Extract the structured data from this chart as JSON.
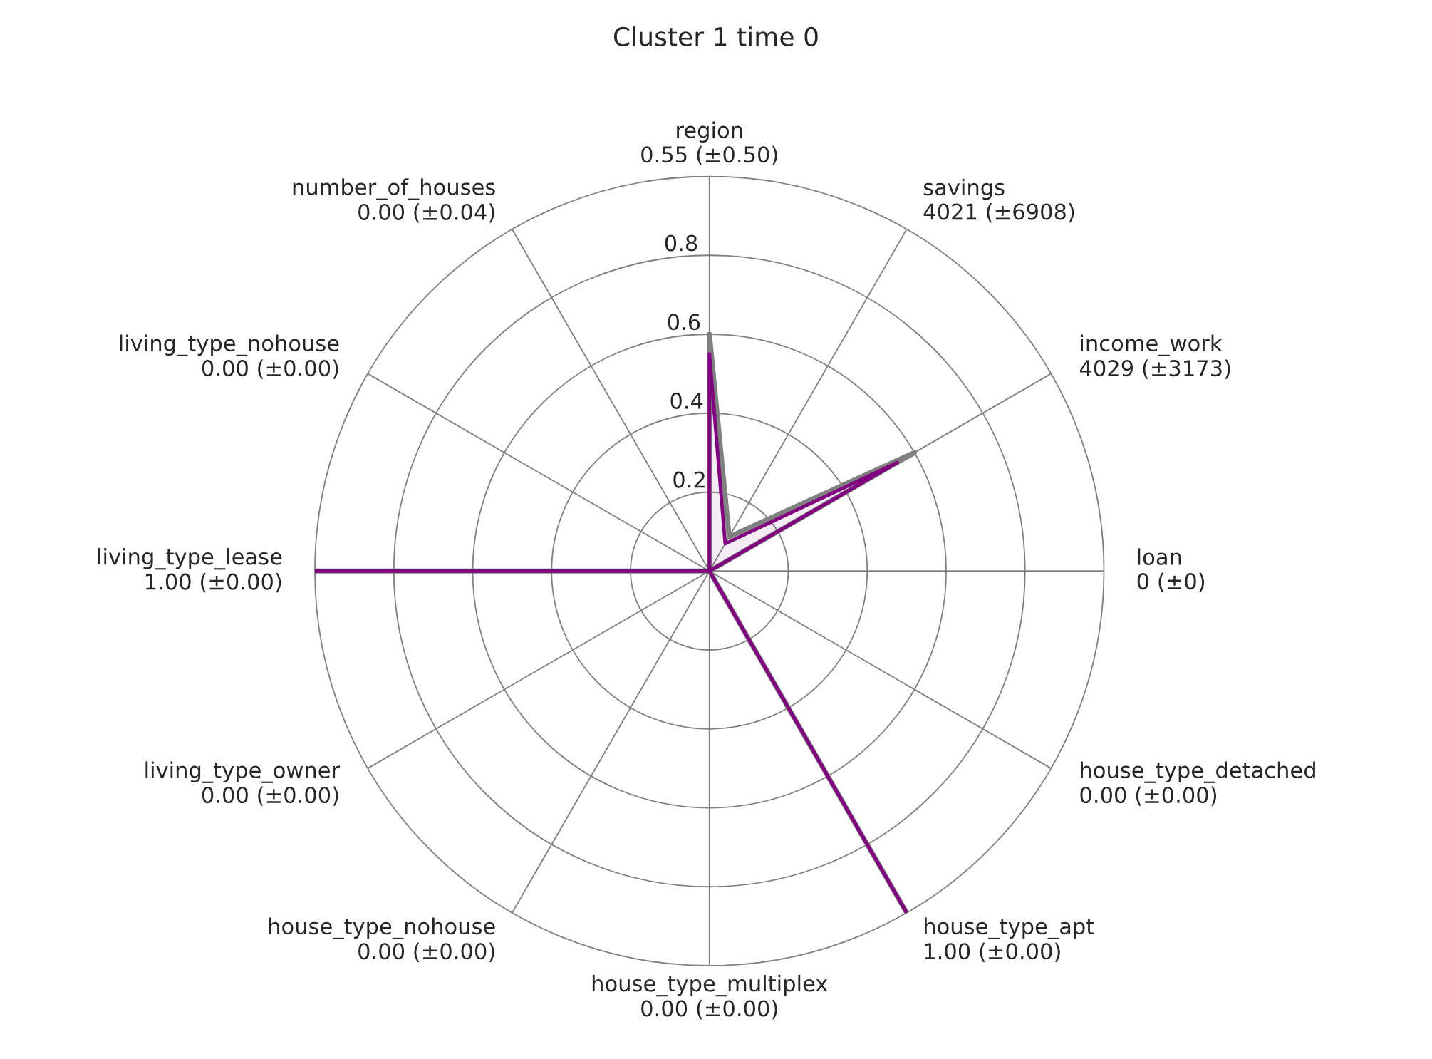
{
  "chart_data": {
    "type": "radar",
    "title": "Cluster 1 time 0",
    "categories": [
      "region\n0.55 (±0.50)",
      "savings\n4021 (±6908)",
      "income_work\n4029 (±3173)",
      "loan\n0 (±0)",
      "house_type_detached\n0.00 (±0.00)",
      "house_type_apt\n1.00 (±0.00)",
      "house_type_multiplex\n0.00 (±0.00)",
      "house_type_nohouse\n0.00 (±0.00)",
      "living_type_owner\n0.00 (±0.00)",
      "living_type_lease\n1.00 (±0.00)",
      "living_type_nohouse\n0.00 (±0.00)",
      "number_of_houses\n0.00 (±0.04)"
    ],
    "series": [
      {
        "color": "#808080",
        "values": [
          0.6,
          0.1,
          0.6,
          0,
          0,
          1.0,
          0,
          0,
          0,
          1.0,
          0,
          0
        ]
      },
      {
        "color": "#800080",
        "values": [
          0.55,
          0.08,
          0.55,
          0,
          0,
          1.0,
          0,
          0,
          0,
          1.0,
          0,
          0
        ]
      }
    ],
    "ylim": [
      0,
      1.0
    ],
    "yticks": [
      0.2,
      0.4,
      0.6,
      0.8
    ],
    "grid": true,
    "legend": false
  }
}
